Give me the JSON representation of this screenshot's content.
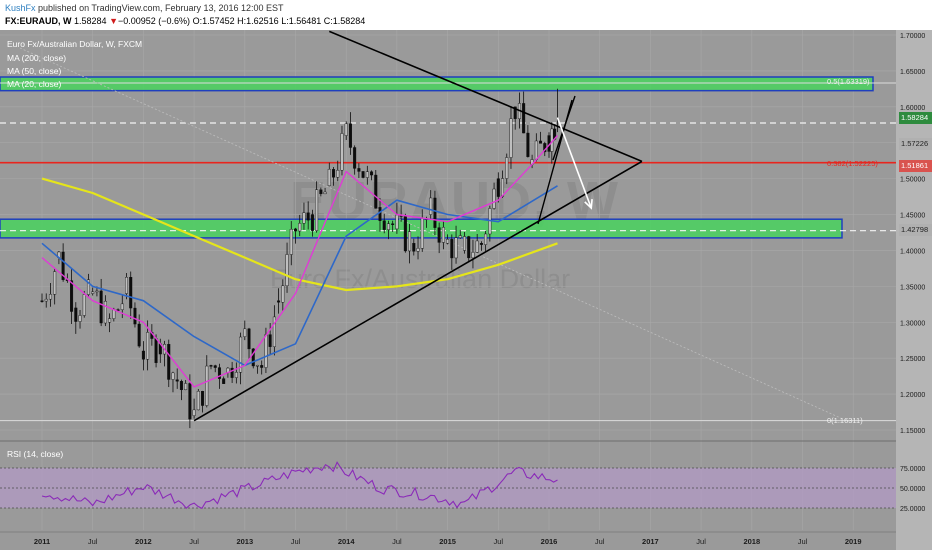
{
  "header": {
    "author": "KushFx",
    "published": "published on TradingView.com, February 13, 2016 12:00 EST",
    "symbol": "FX:EURAUD, W",
    "price": "1.58284",
    "change_arrow": "▼",
    "change": "−0.00952 (−0.6%)",
    "open": "O:1.57452",
    "high": "H:1.62516",
    "low": "L:1.56481",
    "close": "C:1.58284"
  },
  "legend": {
    "title": "Euro Fx/Australian Dollar, W, FXCM",
    "ma200": "MA (200, close)",
    "ma50": "MA (50, close)",
    "ma20": "MA (20, close)",
    "rsi": "RSI (14, close)"
  },
  "watermark": {
    "ticker": "EURAUD, W",
    "name": "Euro Fx/Australian Dollar"
  },
  "colors": {
    "background": "#9a9a9a",
    "candle": "#0d0d0d",
    "ma200": "#e5e51a",
    "ma50": "#2e68c8",
    "ma20": "#e03ad6",
    "fib": "#e8251e",
    "zone_fill": "#49d25e",
    "zone_border": "#1f3fbe",
    "rsi": "#8a2ab8",
    "rsi_band": "#b49ac8"
  },
  "fib_labels": {
    "f05": "0.5(1.63319)",
    "f0382": "0.382(1.52225)",
    "f0": "0(1.16311)"
  },
  "chart_data": {
    "type": "candlestick",
    "title": "Euro Fx/Australian Dollar, W, FXCM",
    "price_ticks": [
      "1.70000",
      "1.65000",
      "1.60000",
      "1.55000",
      "1.50000",
      "1.45000",
      "1.40000",
      "1.35000",
      "1.30000",
      "1.25000",
      "1.20000",
      "1.15000"
    ],
    "price_badges": {
      "current": "1.58284",
      "l1": "1.57226",
      "l2": "1.51861",
      "l3": "1.42798"
    },
    "time_ticks": [
      "2011",
      "Jul",
      "2012",
      "Jul",
      "2013",
      "Jul",
      "2014",
      "Jul",
      "2015",
      "Jul",
      "2016",
      "Jul",
      "2017",
      "Jul",
      "2018",
      "Jul",
      "2019"
    ],
    "ylim": [
      1.148,
      1.705
    ],
    "rsi_ticks": [
      "75.0000",
      "50.0000",
      "25.0000"
    ],
    "rsi_ylim": [
      18,
      85
    ],
    "horizontal_levels": [
      {
        "label": "0.5(1.63319)",
        "value": 1.63319,
        "style": "fib"
      },
      {
        "label": "0.382(1.52225)",
        "value": 1.52225,
        "style": "fib"
      },
      {
        "label": "0(1.16311)",
        "value": 1.16311,
        "style": "fib"
      },
      {
        "value": 1.5775,
        "style": "dashed"
      },
      {
        "value": 1.4275,
        "style": "dashed"
      }
    ],
    "zones": [
      {
        "from": 1.6225,
        "to": 1.6415
      },
      {
        "from": 1.4175,
        "to": 1.4435
      }
    ],
    "trendlines": [
      {
        "from": [
          "2012-07",
          1.163
        ],
        "to": [
          "2016-12",
          1.524
        ]
      },
      {
        "from": [
          "2013-11",
          1.705
        ],
        "to": [
          "2016-12",
          1.524
        ]
      }
    ],
    "projection_arrows": [
      {
        "from": [
          "2016-02",
          1.585
        ],
        "to": [
          "2016-06",
          1.459
        ]
      }
    ],
    "ohlc_weekly_sample": [
      [
        "2011-01",
        1.34,
        1.37,
        1.31,
        1.33
      ],
      [
        "2011-03",
        1.37,
        1.4,
        1.35,
        1.39
      ],
      [
        "2011-05",
        1.36,
        1.38,
        1.31,
        1.32
      ],
      [
        "2011-07",
        1.33,
        1.36,
        1.3,
        1.34
      ],
      [
        "2011-09",
        1.34,
        1.35,
        1.28,
        1.3
      ],
      [
        "2011-11",
        1.33,
        1.36,
        1.31,
        1.34
      ],
      [
        "2012-01",
        1.27,
        1.29,
        1.25,
        1.26
      ],
      [
        "2012-03",
        1.28,
        1.3,
        1.26,
        1.27
      ],
      [
        "2012-05",
        1.24,
        1.26,
        1.21,
        1.22
      ],
      [
        "2012-07",
        1.18,
        1.2,
        1.163,
        1.17
      ],
      [
        "2012-09",
        1.22,
        1.25,
        1.21,
        1.24
      ],
      [
        "2012-11",
        1.23,
        1.25,
        1.22,
        1.23
      ],
      [
        "2013-01",
        1.27,
        1.29,
        1.25,
        1.28
      ],
      [
        "2013-03",
        1.24,
        1.26,
        1.23,
        1.24
      ],
      [
        "2013-05",
        1.31,
        1.34,
        1.3,
        1.33
      ],
      [
        "2013-07",
        1.42,
        1.45,
        1.4,
        1.43
      ],
      [
        "2013-09",
        1.44,
        1.47,
        1.42,
        1.45
      ],
      [
        "2013-11",
        1.46,
        1.5,
        1.45,
        1.49
      ],
      [
        "2014-01",
        1.54,
        1.58,
        1.52,
        1.56
      ],
      [
        "2014-03",
        1.52,
        1.55,
        1.5,
        1.51
      ],
      [
        "2014-05",
        1.47,
        1.49,
        1.45,
        1.46
      ],
      [
        "2014-07",
        1.44,
        1.46,
        1.42,
        1.43
      ],
      [
        "2014-09",
        1.42,
        1.44,
        1.4,
        1.41
      ],
      [
        "2014-11",
        1.43,
        1.46,
        1.42,
        1.45
      ],
      [
        "2015-01",
        1.43,
        1.46,
        1.4,
        1.41
      ],
      [
        "2015-03",
        1.41,
        1.44,
        1.38,
        1.4
      ],
      [
        "2015-05",
        1.4,
        1.43,
        1.37,
        1.41
      ],
      [
        "2015-07",
        1.47,
        1.51,
        1.46,
        1.5
      ],
      [
        "2015-09",
        1.58,
        1.65,
        1.56,
        1.6
      ],
      [
        "2015-11",
        1.53,
        1.56,
        1.51,
        1.52
      ],
      [
        "2016-01",
        1.55,
        1.59,
        1.52,
        1.56
      ],
      [
        "2016-02",
        1.5745,
        1.6252,
        1.5648,
        1.5828
      ]
    ],
    "ma20_sample": [
      [
        "2011-01",
        1.39
      ],
      [
        "2011-07",
        1.33
      ],
      [
        "2012-01",
        1.3
      ],
      [
        "2012-07",
        1.21
      ],
      [
        "2013-01",
        1.24
      ],
      [
        "2013-07",
        1.34
      ],
      [
        "2014-01",
        1.51
      ],
      [
        "2014-07",
        1.45
      ],
      [
        "2015-01",
        1.44
      ],
      [
        "2015-07",
        1.47
      ],
      [
        "2015-11",
        1.52
      ],
      [
        "2016-02",
        1.56
      ]
    ],
    "ma50_sample": [
      [
        "2011-01",
        1.41
      ],
      [
        "2011-07",
        1.35
      ],
      [
        "2012-01",
        1.33
      ],
      [
        "2012-07",
        1.28
      ],
      [
        "2013-01",
        1.24
      ],
      [
        "2013-07",
        1.27
      ],
      [
        "2014-01",
        1.42
      ],
      [
        "2014-07",
        1.47
      ],
      [
        "2015-01",
        1.45
      ],
      [
        "2015-07",
        1.44
      ],
      [
        "2016-02",
        1.49
      ]
    ],
    "ma200_sample": [
      [
        "2011-01",
        1.5
      ],
      [
        "2011-07",
        1.48
      ],
      [
        "2012-01",
        1.45
      ],
      [
        "2012-07",
        1.42
      ],
      [
        "2013-01",
        1.39
      ],
      [
        "2013-07",
        1.36
      ],
      [
        "2014-01",
        1.345
      ],
      [
        "2014-07",
        1.35
      ],
      [
        "2015-01",
        1.36
      ],
      [
        "2015-07",
        1.38
      ],
      [
        "2016-02",
        1.41
      ]
    ],
    "rsi_sample": [
      [
        "2011-01",
        45
      ],
      [
        "2011-07",
        30
      ],
      [
        "2012-01",
        52
      ],
      [
        "2012-07",
        28
      ],
      [
        "2013-01",
        48
      ],
      [
        "2013-07",
        70
      ],
      [
        "2013-11",
        80
      ],
      [
        "2014-05",
        50
      ],
      [
        "2014-11",
        40
      ],
      [
        "2015-03",
        30
      ],
      [
        "2015-09",
        70
      ],
      [
        "2016-02",
        60
      ]
    ]
  }
}
